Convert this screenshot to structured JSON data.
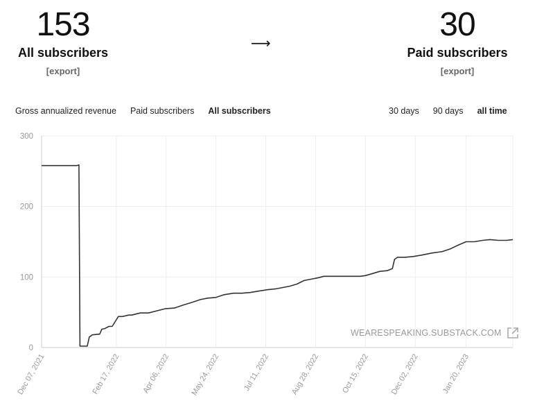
{
  "stats": {
    "all": {
      "value": "153",
      "label": "All subscribers",
      "export": "[export]"
    },
    "arrow": "⟶",
    "paid": {
      "value": "30",
      "label": "Paid subscribers",
      "export": "[export]"
    }
  },
  "tabs": [
    {
      "label": "Gross annualized revenue",
      "active": false
    },
    {
      "label": "Paid subscribers",
      "active": false
    },
    {
      "label": "All subscribers",
      "active": true
    }
  ],
  "ranges": [
    {
      "label": "30 days",
      "active": false
    },
    {
      "label": "90 days",
      "active": false
    },
    {
      "label": "all time",
      "active": true
    }
  ],
  "watermark": {
    "text": "WEARESPEAKING.SUBSTACK.COM",
    "icon": "external-link-icon"
  },
  "colors": {
    "line": "#333333",
    "grid": "#eeeeee",
    "tick": "#999999"
  },
  "chart_data": {
    "type": "line",
    "title": "",
    "xlabel": "",
    "ylabel": "",
    "ylim": [
      0,
      300
    ],
    "yticks": [
      0,
      100,
      200,
      300
    ],
    "xlim": [
      "2021-12-07",
      "2023-03-06"
    ],
    "xticks": [
      "Dec 07, 2021",
      "Feb 17, 2022",
      "Apr 06, 2022",
      "May 24, 2022",
      "Jul 11, 2022",
      "Aug 28, 2022",
      "Oct 15, 2022",
      "Dec 02, 2022",
      "Jan 20, 2023"
    ],
    "grid": true,
    "series": [
      {
        "x": [
          "2021-12-07",
          "2022-01-10",
          "2022-01-12",
          "2022-01-13",
          "2022-01-20",
          "2022-01-22",
          "2022-01-25",
          "2022-02-01",
          "2022-02-03",
          "2022-02-06",
          "2022-02-10",
          "2022-02-13",
          "2022-02-19",
          "2022-02-23",
          "2022-03-01",
          "2022-03-04",
          "2022-03-12",
          "2022-03-20",
          "2022-03-28",
          "2022-04-05",
          "2022-04-14",
          "2022-04-22",
          "2022-05-01",
          "2022-05-09",
          "2022-05-16",
          "2022-05-24",
          "2022-06-01",
          "2022-06-10",
          "2022-06-18",
          "2022-06-26",
          "2022-07-04",
          "2022-07-13",
          "2022-07-20",
          "2022-07-27",
          "2022-08-03",
          "2022-08-10",
          "2022-08-17",
          "2022-08-24",
          "2022-08-31",
          "2022-09-05",
          "2022-09-10",
          "2022-09-20",
          "2022-10-01",
          "2022-10-10",
          "2022-10-15",
          "2022-10-22",
          "2022-10-29",
          "2022-11-05",
          "2022-11-10",
          "2022-11-12",
          "2022-11-15",
          "2022-11-22",
          "2022-11-30",
          "2022-12-08",
          "2022-12-18",
          "2022-12-28",
          "2023-01-05",
          "2023-01-12",
          "2023-01-20",
          "2023-01-28",
          "2023-02-05",
          "2023-02-12",
          "2023-02-20",
          "2023-02-28",
          "2023-03-06"
        ],
        "y": [
          258,
          258,
          259,
          2,
          2,
          15,
          18,
          19,
          26,
          27,
          30,
          30,
          44,
          44,
          46,
          46,
          49,
          49,
          52,
          55,
          56,
          60,
          64,
          68,
          70,
          71,
          75,
          77,
          77,
          78,
          80,
          82,
          83,
          85,
          87,
          90,
          95,
          97,
          99,
          101,
          101,
          101,
          101,
          101,
          102,
          105,
          108,
          109,
          112,
          125,
          128,
          128,
          129,
          131,
          134,
          136,
          140,
          145,
          150,
          150,
          152,
          153,
          152,
          152,
          153
        ]
      }
    ]
  }
}
